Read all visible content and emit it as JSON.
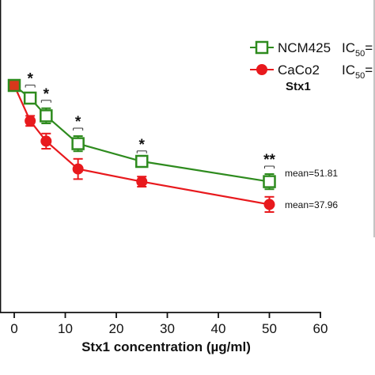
{
  "chart_data": {
    "type": "line",
    "xlabel": "Stx1 concentration (µg/ml)",
    "xlim": [
      0,
      60
    ],
    "x_ticks": [
      "0",
      "10",
      "20",
      "30",
      "40",
      "50",
      "60"
    ],
    "series": [
      {
        "name": "NCM425",
        "color": "#2e8b1e",
        "marker": "open-square",
        "x": [
          0,
          3.125,
          6.25,
          12.5,
          25,
          50
        ],
        "y": [
          100,
          95,
          88,
          77,
          70,
          62
        ],
        "err": [
          0,
          2,
          3,
          3,
          1,
          3
        ]
      },
      {
        "name": "CaCo2",
        "color": "#e8191d",
        "marker": "filled-circle",
        "x": [
          0,
          3.125,
          6.25,
          12.5,
          25,
          50
        ],
        "y": [
          100,
          86,
          78,
          67,
          62,
          53
        ],
        "err": [
          0,
          2,
          3,
          4,
          2,
          3
        ]
      }
    ],
    "significance": [
      {
        "x": 3.125,
        "label": "*"
      },
      {
        "x": 6.25,
        "label": "*"
      },
      {
        "x": 12.5,
        "label": "*"
      },
      {
        "x": 25,
        "label": "*"
      },
      {
        "x": 50,
        "label": "**"
      }
    ],
    "annotations": {
      "ncm_mean": "mean=51.81",
      "caco_mean": "mean=37.96"
    },
    "legend": {
      "title": "Stx1",
      "ic50_prefix": "IC",
      "ic50_sub": "50",
      "ic50_suffix": "=",
      "placement": "top-right"
    }
  }
}
